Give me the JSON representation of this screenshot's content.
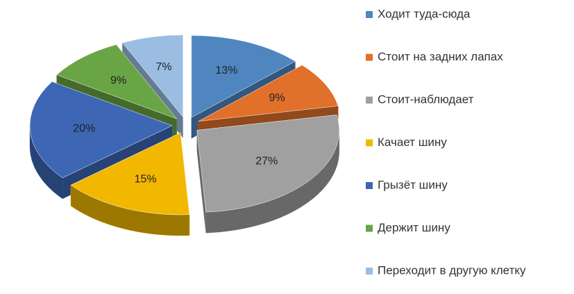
{
  "chart_data": {
    "type": "pie3d",
    "categories": [
      "Ходит туда-сюда",
      "Стоит на задних лапах",
      "Стоит-наблюдает",
      "Качает шину",
      "Грызёт шину",
      "Держит шину",
      "Переходит в другую клетку"
    ],
    "values": [
      13,
      9,
      27,
      15,
      20,
      9,
      7
    ],
    "value_labels": [
      "13%",
      "9%",
      "27%",
      "15%",
      "20%",
      "9%",
      "7%"
    ],
    "colors": [
      "#4f86c0",
      "#e0702a",
      "#a0a0a0",
      "#f2b800",
      "#3d66b4",
      "#69a544",
      "#9bbde2"
    ]
  }
}
